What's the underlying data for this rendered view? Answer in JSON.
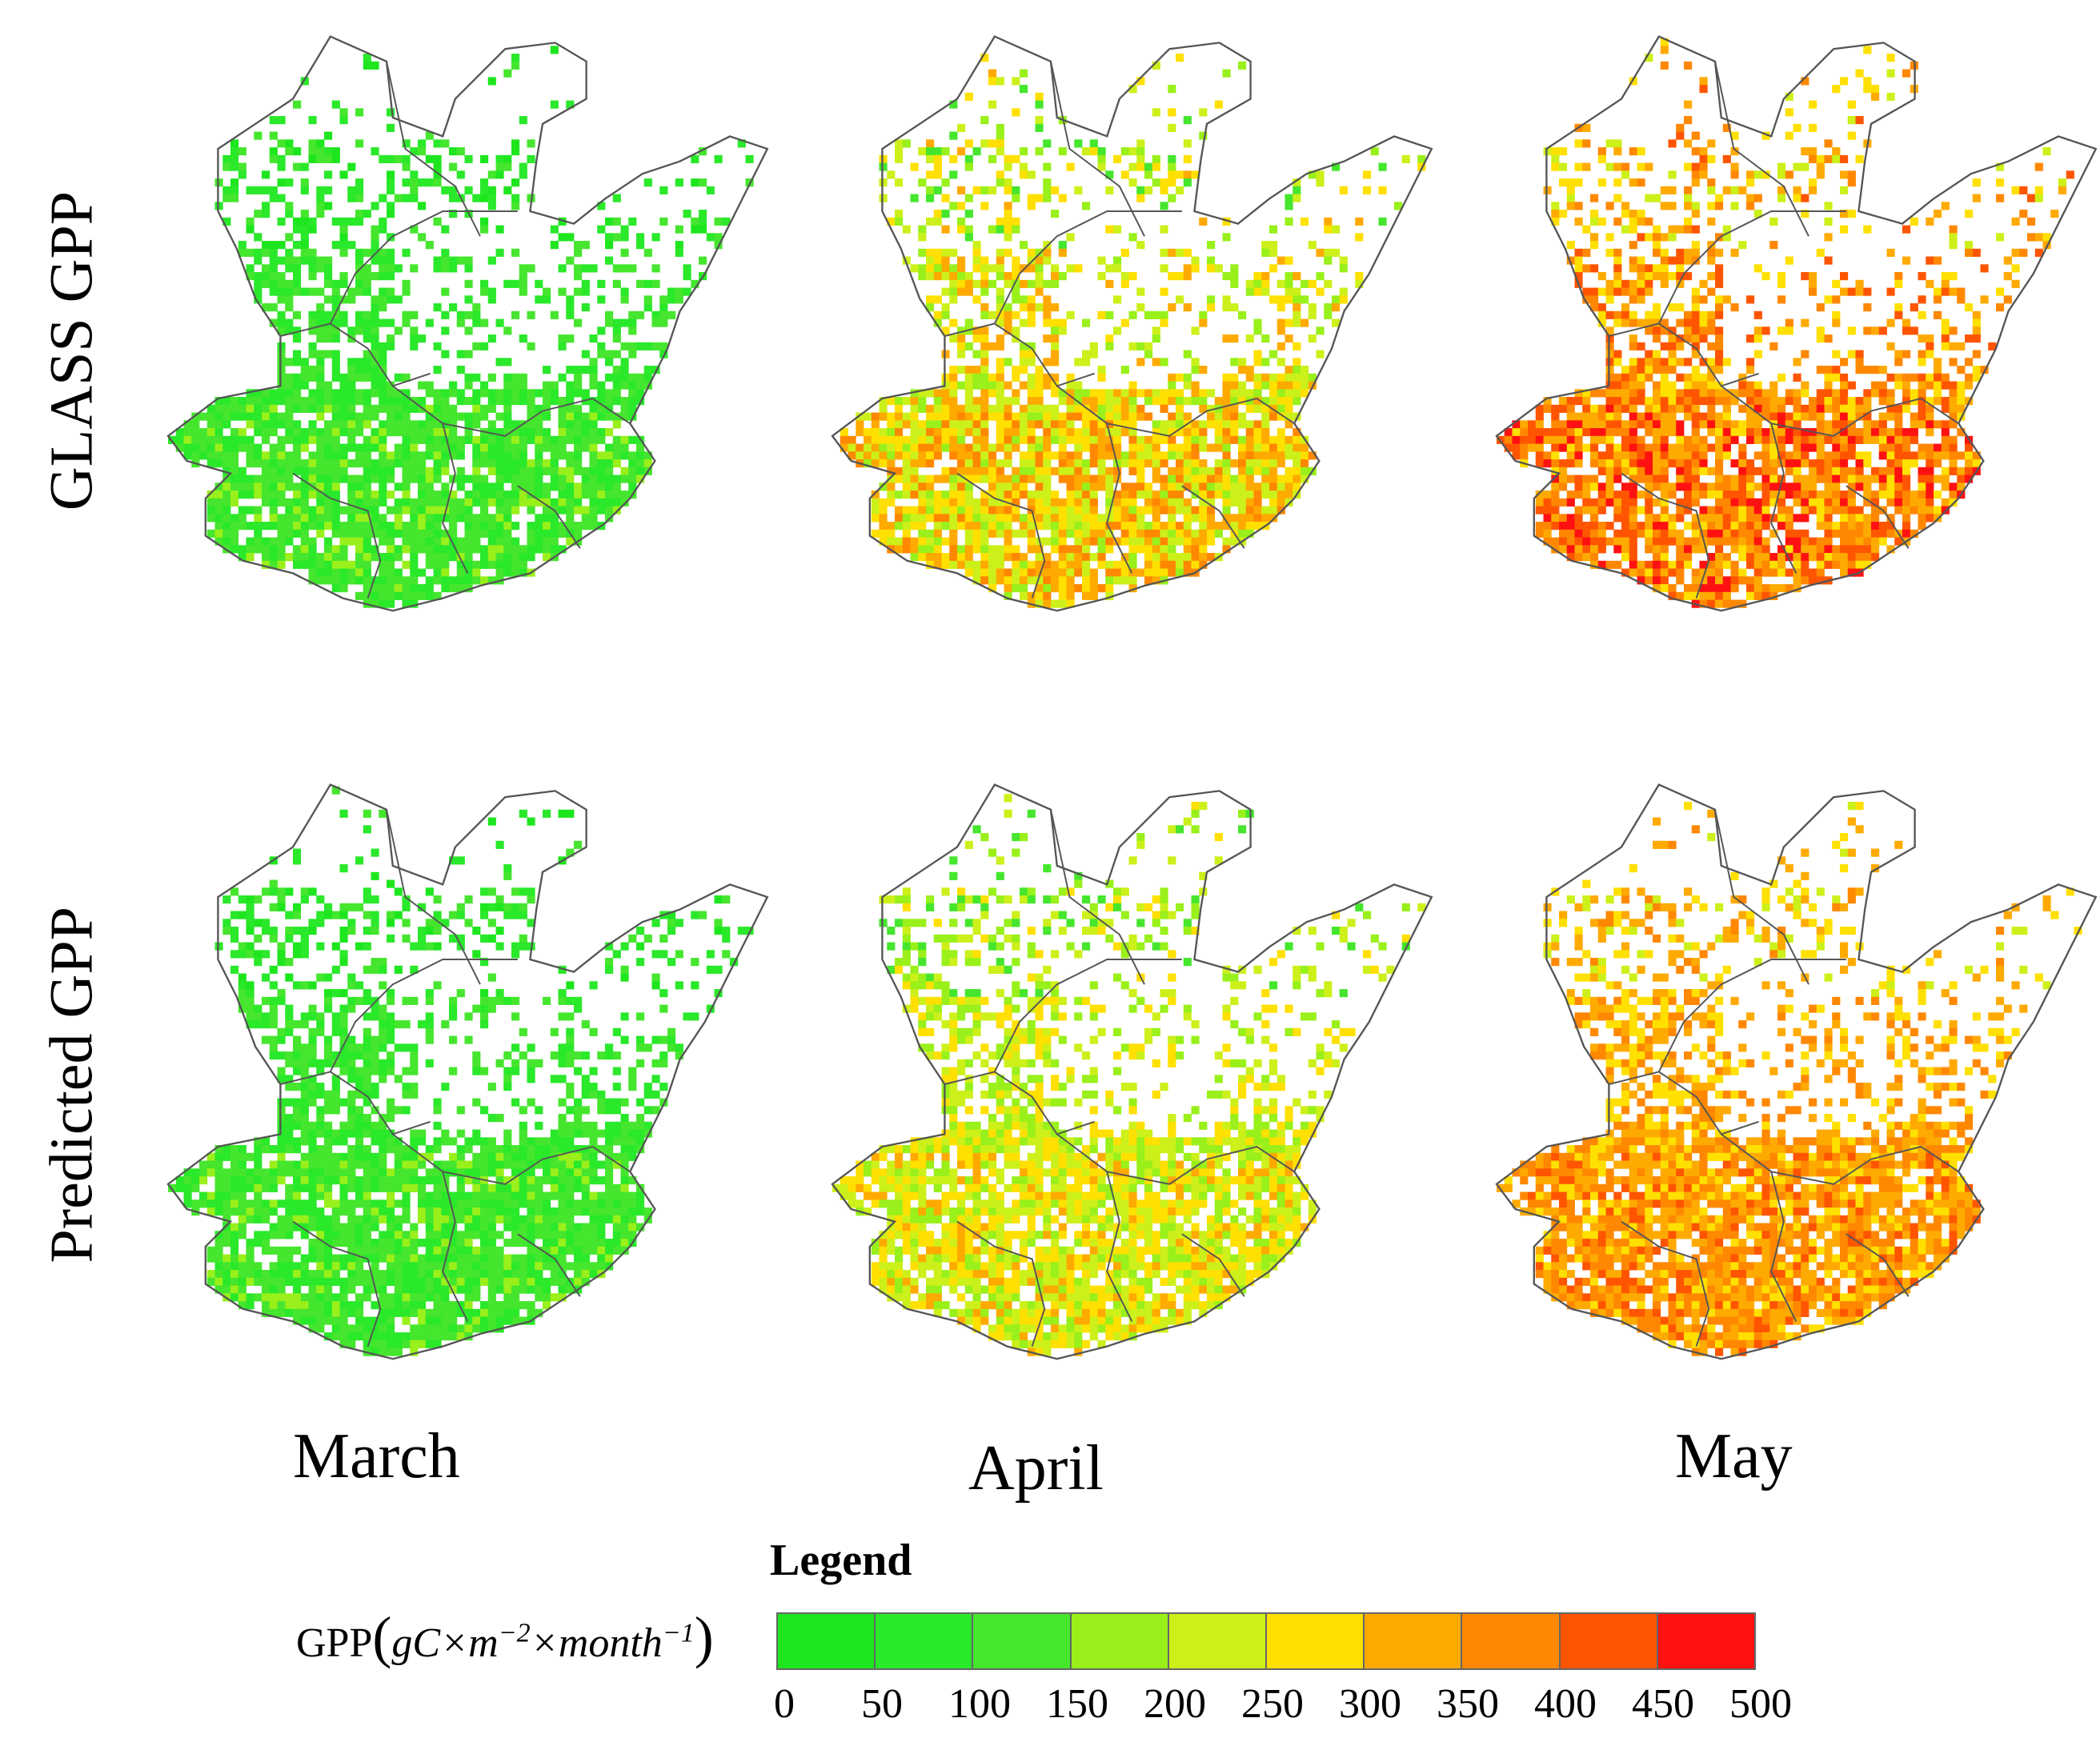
{
  "rows": [
    {
      "label": "GLASS GPP"
    },
    {
      "label": "Predicted GPP"
    }
  ],
  "columns": [
    {
      "label": "March"
    },
    {
      "label": "April"
    },
    {
      "label": "May"
    }
  ],
  "panels": [
    {
      "row": 0,
      "col": 0,
      "month": "March",
      "product": "GLASS GPP",
      "dominant_gpp_range": [
        50,
        150
      ]
    },
    {
      "row": 0,
      "col": 1,
      "month": "April",
      "product": "GLASS GPP",
      "dominant_gpp_range": [
        150,
        350
      ]
    },
    {
      "row": 0,
      "col": 2,
      "month": "May",
      "product": "GLASS GPP",
      "dominant_gpp_range": [
        250,
        450
      ]
    },
    {
      "row": 1,
      "col": 0,
      "month": "March",
      "product": "Predicted GPP",
      "dominant_gpp_range": [
        50,
        150
      ]
    },
    {
      "row": 1,
      "col": 1,
      "month": "April",
      "product": "Predicted GPP",
      "dominant_gpp_range": [
        150,
        300
      ]
    },
    {
      "row": 1,
      "col": 2,
      "month": "May",
      "product": "Predicted GPP",
      "dominant_gpp_range": [
        250,
        400
      ]
    }
  ],
  "legend": {
    "title": "Legend",
    "label_prefix": "GPP",
    "unit_g": "gC",
    "unit_times1": "×m",
    "unit_exp1": "−2",
    "unit_times2": "×month",
    "unit_exp2": "−1",
    "open_paren": "(",
    "close_paren": ")",
    "ticks": [
      "0",
      "50",
      "100",
      "150",
      "200",
      "250",
      "300",
      "350",
      "400",
      "450",
      "500"
    ],
    "colors": [
      "#1ee61e",
      "#2ae82a",
      "#45e62d",
      "#99f01a",
      "#ccf01a",
      "#ffe000",
      "#ffaa00",
      "#ff8800",
      "#ff5500",
      "#ff1111"
    ]
  }
}
